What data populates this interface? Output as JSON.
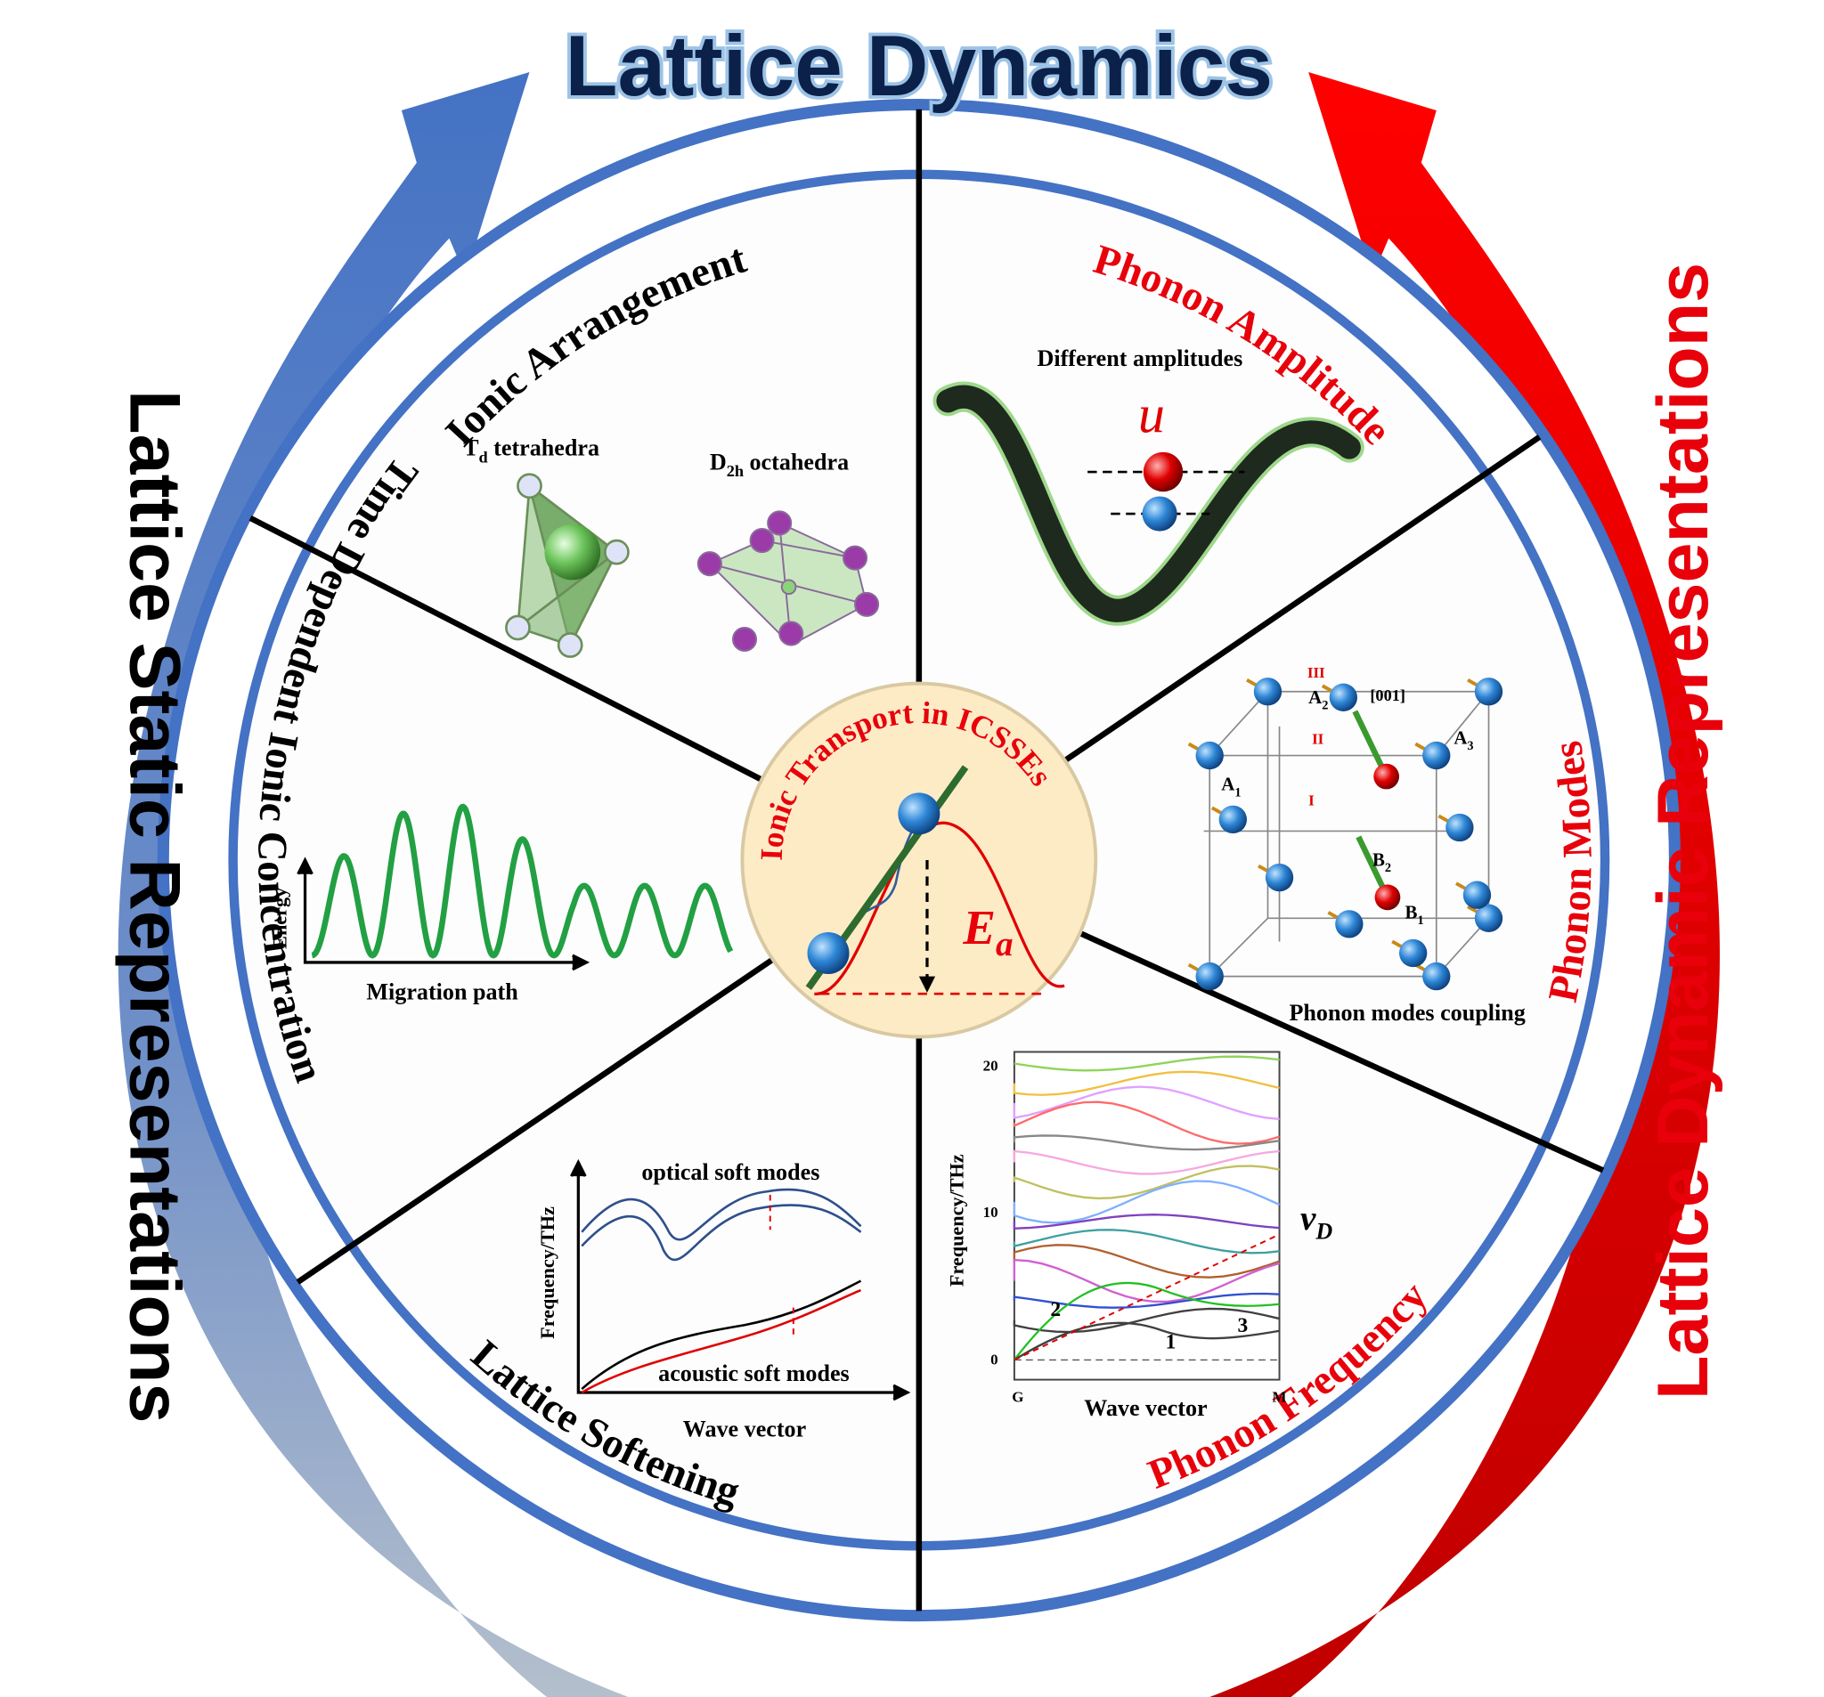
{
  "title": "Lattice Dynamics",
  "side_labels": {
    "left": "Lattice Static Representations",
    "right": "Lattice Dynamic Representations"
  },
  "sectors": [
    {
      "label": "Ionic Arrangement"
    },
    {
      "label": "Phonon Amplitude"
    },
    {
      "label": "Phonon Modes"
    },
    {
      "label": "Phonon Frequency"
    },
    {
      "label": "Lattice Softening"
    },
    {
      "label": "Time Dependent Ionic Concentration"
    }
  ],
  "center": {
    "label": "Ionic Transport in ICSSEs",
    "energy": {
      "main": "E",
      "sub": "a"
    }
  },
  "panels": {
    "arrangement": {
      "tetra": {
        "main": "T",
        "sub": "d",
        "rest": " tetrahedra"
      },
      "octa": {
        "main": "D",
        "sub": "2h",
        "rest": " octahedra"
      }
    },
    "amplitude": {
      "caption": "Different amplitudes",
      "symbol": "u"
    },
    "modes": {
      "caption": "Phonon modes coupling",
      "direction": "[001]",
      "sites": [
        {
          "main": "A",
          "sub": "1"
        },
        {
          "main": "A",
          "sub": "2"
        },
        {
          "main": "A",
          "sub": "3"
        },
        {
          "main": "B",
          "sub": "1"
        },
        {
          "main": "B",
          "sub": "2"
        }
      ],
      "steps": [
        "I",
        "II",
        "III"
      ]
    },
    "migration": {
      "y_label": "Energy",
      "x_label": "Migration path"
    },
    "softening": {
      "y_label": "Frequency/THz",
      "x_label": "Wave vector",
      "optical": "optical soft modes",
      "acoustic": "acoustic soft modes"
    },
    "frequency": {
      "y_label": "Frequency/THz",
      "x_label": "Wave vector",
      "ticks": [
        "0",
        "10",
        "20"
      ],
      "x_ends": [
        "G",
        "M"
      ],
      "velocity": {
        "main": "v",
        "sub": "D"
      },
      "branches": [
        "1",
        "2",
        "3"
      ]
    }
  }
}
